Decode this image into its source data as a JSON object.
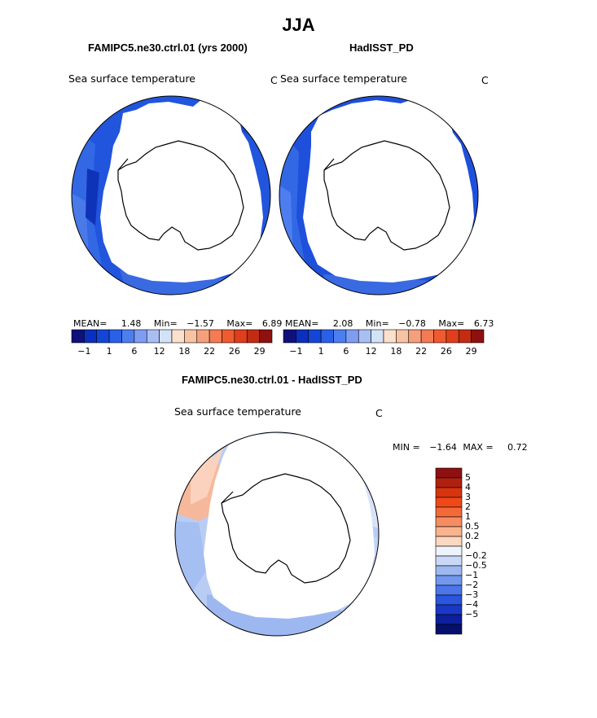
{
  "title": "JJA",
  "panels": [
    {
      "title": "FAMIPC5.ne30.ctrl.01 (yrs 2000)",
      "variable": "Sea surface temperature",
      "units": "C",
      "stats": {
        "mean_label": "MEAN=",
        "mean": "1.48",
        "min_label": "Min=",
        "min": "−1.57",
        "max_label": "Max=",
        "max": "6.89"
      }
    },
    {
      "title": "HadISST_PD",
      "variable": "Sea surface temperature",
      "units": "C",
      "stats": {
        "mean_label": "MEAN=",
        "mean": "2.08",
        "min_label": "Min=",
        "min": "−0.78",
        "max_label": "Max=",
        "max": "6.73"
      }
    },
    {
      "title": "FAMIPC5.ne30.ctrl.01 - HadISST_PD",
      "variable": "Sea surface temperature",
      "units": "C",
      "stats": {
        "min_label": "MIN =",
        "min": "−1.64",
        "max_label": "MAX =",
        "max": "0.72"
      }
    }
  ],
  "chart_data": [
    {
      "type": "heatmap",
      "projection": "south-polar-stereographic",
      "colorbar": {
        "orientation": "horizontal",
        "colors": [
          "#10107a",
          "#0b2fbf",
          "#1446d6",
          "#2a60e8",
          "#4d7ef0",
          "#7e9df2",
          "#a9bff4",
          "#d4e2f7",
          "#fbe0cc",
          "#f9c3a3",
          "#f6a07b",
          "#f47b54",
          "#f05a30",
          "#e03f1c",
          "#c42c12",
          "#8e1010"
        ],
        "tick_labels": [
          "−1",
          "1",
          "6",
          "12",
          "18",
          "22",
          "26",
          "29"
        ]
      }
    },
    {
      "type": "heatmap",
      "projection": "south-polar-stereographic",
      "colorbar": {
        "orientation": "horizontal",
        "colors": [
          "#10107a",
          "#0b2fbf",
          "#1446d6",
          "#2a60e8",
          "#4d7ef0",
          "#7e9df2",
          "#a9bff4",
          "#d4e2f7",
          "#fbe0cc",
          "#f9c3a3",
          "#f6a07b",
          "#f47b54",
          "#f05a30",
          "#e03f1c",
          "#c42c12",
          "#8e1010"
        ],
        "tick_labels": [
          "−1",
          "1",
          "6",
          "12",
          "18",
          "22",
          "26",
          "29"
        ]
      }
    },
    {
      "type": "heatmap",
      "projection": "south-polar-stereographic",
      "colorbar": {
        "orientation": "vertical",
        "colors": [
          "#8e1010",
          "#b0200f",
          "#d8340f",
          "#f04818",
          "#f36a38",
          "#f68d62",
          "#f9b48e",
          "#fcd8c0",
          "#eef3fb",
          "#c8d8f5",
          "#9db8f1",
          "#7297ee",
          "#4a76ea",
          "#2b55de",
          "#1a38c6",
          "#0c1f9c",
          "#05106d"
        ],
        "tick_labels": [
          "5",
          "4",
          "3",
          "2",
          "1",
          "0.5",
          "0.2",
          "0",
          "−0.2",
          "−0.5",
          "−1",
          "−2",
          "−3",
          "−4",
          "−5"
        ]
      }
    }
  ]
}
